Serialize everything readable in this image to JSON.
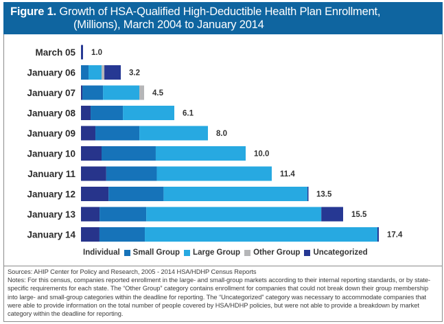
{
  "title": {
    "figure_label": "Figure 1.",
    "line1": "Growth of HSA-Qualified High-Deductible Health Plan Enrollment,",
    "line2": "(Millions), March 2004 to January 2014"
  },
  "colors": {
    "title_bar": "#0f65a0",
    "Individual": "#27348b",
    "Small Group": "#1673b9",
    "Large Group": "#27a9e1",
    "Other Group": "#b5b6b8",
    "Uncategorized": "#263893"
  },
  "chart_data": {
    "type": "bar",
    "orientation": "horizontal",
    "stacked": true,
    "title": "Growth of HSA-Qualified High-Deductible Health Plan Enrollment, (Millions), March 2004 to January 2014",
    "xlabel": "",
    "ylabel": "",
    "unit": "Millions",
    "categories": [
      "March 05",
      "January 06",
      "January 07",
      "January 08",
      "January 09",
      "January 10",
      "January 11",
      "January 12",
      "January 13",
      "January 14"
    ],
    "totals": [
      1.0,
      3.2,
      4.5,
      6.1,
      8.0,
      10.0,
      11.4,
      13.5,
      15.5,
      17.4
    ],
    "total_labels": [
      "1.0",
      "3.2",
      "4.5",
      "6.1",
      "8.0",
      "10.0",
      "11.4",
      "13.5",
      "15.5",
      "17.4"
    ],
    "series": [
      {
        "name": "Individual",
        "values": [
          0.0,
          0.0,
          0.1,
          0.63,
          0.91,
          1.25,
          1.51,
          1.64,
          1.1,
          1.08
        ]
      },
      {
        "name": "Small Group",
        "values": [
          0.0,
          0.61,
          1.47,
          2.11,
          2.77,
          3.29,
          3.02,
          3.27,
          2.76,
          2.65
        ]
      },
      {
        "name": "Large Group",
        "values": [
          0.0,
          1.05,
          2.59,
          3.36,
          4.32,
          5.46,
          6.87,
          8.55,
          10.35,
          13.59
        ]
      },
      {
        "name": "Other Group",
        "values": [
          0.0,
          0.22,
          0.34,
          0.0,
          0.0,
          0.0,
          0.0,
          0.0,
          0.0,
          0.0
        ]
      },
      {
        "name": "Uncategorized",
        "values": [
          1.0,
          1.32,
          0.0,
          0.0,
          0.0,
          0.0,
          0.0,
          0.04,
          1.29,
          0.08
        ]
      }
    ],
    "legend": {
      "position": "bottom",
      "entries": [
        "Individual",
        "Small Group",
        "Large Group",
        "Other Group",
        "Uncategorized"
      ]
    },
    "grid": false
  },
  "notes": {
    "sources": "Sources: AHIP Center for Policy and Research, 2005 - 2014 HSA/HDHP Census Reports",
    "text": "Notes: For this census, companies reported enrollment in the large- and small-group markets according to their internal reporting standards, or by state-specific requirements for each state. The “Other Group” category contains enrollment for companies that could not break down their group membership into large- and small-group categories within the deadline for reporting. The “Uncategorized” category was necessary to accommodate companies that were able to provide information on the total number of people covered by HSA/HDHP policies, but were not able to provide a breakdown by market category within the deadline for reporting."
  }
}
